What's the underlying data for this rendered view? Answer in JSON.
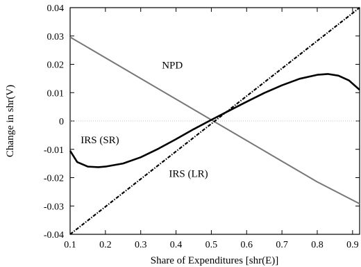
{
  "chart_data": {
    "type": "line",
    "xlabel": "Share of Expenditures [shr(E)]",
    "ylabel": "Change in shr(V)",
    "xlim": [
      0.1,
      0.92
    ],
    "ylim": [
      -0.04,
      0.04
    ],
    "x_ticks": [
      0.1,
      0.2,
      0.3,
      0.4,
      0.5,
      0.6,
      0.7,
      0.8,
      0.9
    ],
    "y_ticks": [
      -0.04,
      -0.03,
      -0.02,
      -0.01,
      0,
      0.01,
      0.02,
      0.03,
      0.04
    ],
    "x_tick_labels": [
      "0.1",
      "0.2",
      "0.3",
      "0.4",
      "0.5",
      "0.6",
      "0.7",
      "0.8",
      "0.9"
    ],
    "y_tick_labels": [
      "-0.04",
      "-0.03",
      "-0.02",
      "-0.01",
      "0",
      "0.01",
      "0.02",
      "0.03",
      "0.04"
    ],
    "grid": false,
    "zero_line": true,
    "series": [
      {
        "name": "NPD",
        "color": "#777777",
        "style": "solid",
        "x": [
          0.1,
          0.2,
          0.3,
          0.4,
          0.5,
          0.6,
          0.7,
          0.8,
          0.92
        ],
        "y": [
          0.0296,
          0.0223,
          0.015,
          0.0077,
          0.0004,
          -0.0069,
          -0.0142,
          -0.0215,
          -0.0292
        ]
      },
      {
        "name": "IRS (SR)",
        "color": "#000000",
        "style": "solid",
        "x": [
          0.1,
          0.12,
          0.15,
          0.18,
          0.2,
          0.25,
          0.3,
          0.35,
          0.4,
          0.45,
          0.5,
          0.55,
          0.6,
          0.65,
          0.7,
          0.75,
          0.8,
          0.83,
          0.86,
          0.89,
          0.92
        ],
        "y": [
          -0.0105,
          -0.0145,
          -0.0161,
          -0.0163,
          -0.0161,
          -0.015,
          -0.0128,
          -0.0098,
          -0.0064,
          -0.0029,
          0.0004,
          0.0036,
          0.0068,
          0.0099,
          0.0126,
          0.0149,
          0.0163,
          0.0166,
          0.016,
          0.0143,
          0.011
        ]
      },
      {
        "name": "IRS (LR)",
        "color": "#000000",
        "style": "dashdot",
        "x": [
          0.1,
          0.92
        ],
        "y": [
          -0.04,
          0.04
        ]
      }
    ],
    "annotations": [
      {
        "text": "NPD",
        "x": 0.36,
        "y": 0.0185
      },
      {
        "text": "IRS (SR)",
        "x": 0.13,
        "y": -0.0079
      },
      {
        "text": "IRS (LR)",
        "x": 0.38,
        "y": -0.0198
      }
    ]
  }
}
